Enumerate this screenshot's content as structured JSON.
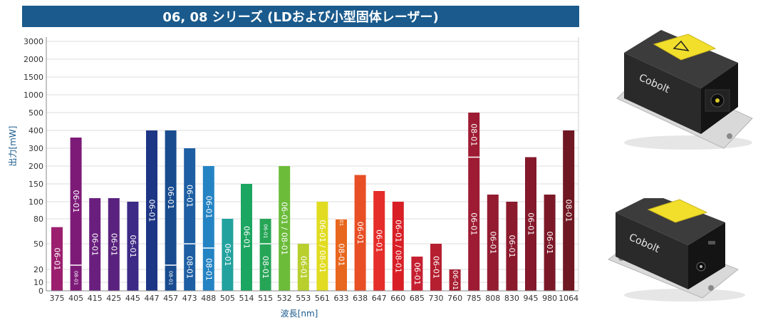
{
  "chart_data": {
    "type": "bar",
    "title": "06, 08 シリーズ (LDおよび小型固体レーザー)",
    "xlabel": "波長[nm]",
    "ylabel": "出力[mW]",
    "yticks": [
      "0",
      "10",
      "20",
      "50",
      "80",
      "100",
      "150",
      "200",
      "300",
      "400",
      "500",
      "1000",
      "1500",
      "2000",
      "3000"
    ],
    "bars": [
      {
        "category": "375",
        "value": 70,
        "color": "#9c1f6f",
        "labels": [
          "06-01"
        ]
      },
      {
        "category": "405",
        "value": 360,
        "color": "#7d1a78",
        "labels": [
          "08-01",
          "06-01"
        ],
        "split": 25
      },
      {
        "category": "415",
        "value": 110,
        "color": "#6a1f7e",
        "labels": [
          "06-01"
        ]
      },
      {
        "category": "425",
        "value": 110,
        "color": "#5a227e",
        "labels": [
          "06-01"
        ]
      },
      {
        "category": "445",
        "value": 100,
        "color": "#3c2a86",
        "labels": [
          "06-01"
        ]
      },
      {
        "category": "447",
        "value": 400,
        "color": "#1d3585",
        "labels": [
          "06-01"
        ]
      },
      {
        "category": "457",
        "value": 400,
        "color": "#184c8f",
        "labels": [
          "08-01",
          "06-01"
        ],
        "split": 25
      },
      {
        "category": "473",
        "value": 300,
        "color": "#1e5fa3",
        "labels": [
          "08-01",
          "06-01"
        ],
        "split": 50
      },
      {
        "category": "488",
        "value": 200,
        "color": "#2483c3",
        "labels": [
          "08-01",
          "06-01"
        ],
        "split": 45
      },
      {
        "category": "505",
        "value": 80,
        "color": "#21a29e",
        "labels": [
          "06-01"
        ]
      },
      {
        "category": "514",
        "value": 150,
        "color": "#1ba661",
        "labels": [
          "06-01"
        ]
      },
      {
        "category": "515",
        "value": 80,
        "color": "#27a557",
        "labels": [
          "08-01",
          "06-01"
        ],
        "split": 50
      },
      {
        "category": "532",
        "value": 200,
        "color": "#6cbc3a",
        "labels": [
          "06-01 / 08-01"
        ]
      },
      {
        "category": "553",
        "value": 50,
        "color": "#b8cf2e",
        "labels": [
          "06-01"
        ]
      },
      {
        "category": "561",
        "value": 100,
        "color": "#e1dc21",
        "labels": [
          "06-01 / 08-01"
        ]
      },
      {
        "category": "633",
        "value": 80,
        "color": "#e8671e",
        "labels": [
          "08-01",
          "06-01"
        ],
        "split": 80
      },
      {
        "category": "638",
        "value": 175,
        "color": "#e84f25",
        "labels": [
          "06-01"
        ]
      },
      {
        "category": "647",
        "value": 130,
        "color": "#e52d2a",
        "labels": [
          "06-01"
        ]
      },
      {
        "category": "660",
        "value": 100,
        "color": "#d81f26",
        "labels": [
          "06-01 / 08-01"
        ]
      },
      {
        "category": "685",
        "value": 35,
        "color": "#c61f31",
        "labels": [
          "06-01"
        ]
      },
      {
        "category": "730",
        "value": 50,
        "color": "#b51f30",
        "labels": [
          "06-01"
        ]
      },
      {
        "category": "760",
        "value": 20,
        "color": "#a81f32",
        "labels": [
          "06-01"
        ]
      },
      {
        "category": "785",
        "value": 500,
        "color": "#9e1c33",
        "labels": [
          "06-01",
          "08-01"
        ],
        "split": 250
      },
      {
        "category": "808",
        "value": 120,
        "color": "#931c31",
        "labels": [
          "06-01"
        ]
      },
      {
        "category": "830",
        "value": 100,
        "color": "#8b1a2d",
        "labels": [
          "06-01"
        ]
      },
      {
        "category": "945",
        "value": 250,
        "color": "#83192b",
        "labels": [
          "06-01"
        ]
      },
      {
        "category": "980",
        "value": 120,
        "color": "#7b1828",
        "labels": [
          "06-01"
        ]
      },
      {
        "category": "1064",
        "value": 400,
        "color": "#6f1722",
        "labels": [
          "08-01"
        ]
      }
    ]
  },
  "products": [
    {
      "brand": "Cobolt"
    },
    {
      "brand": "Cobolt"
    }
  ]
}
